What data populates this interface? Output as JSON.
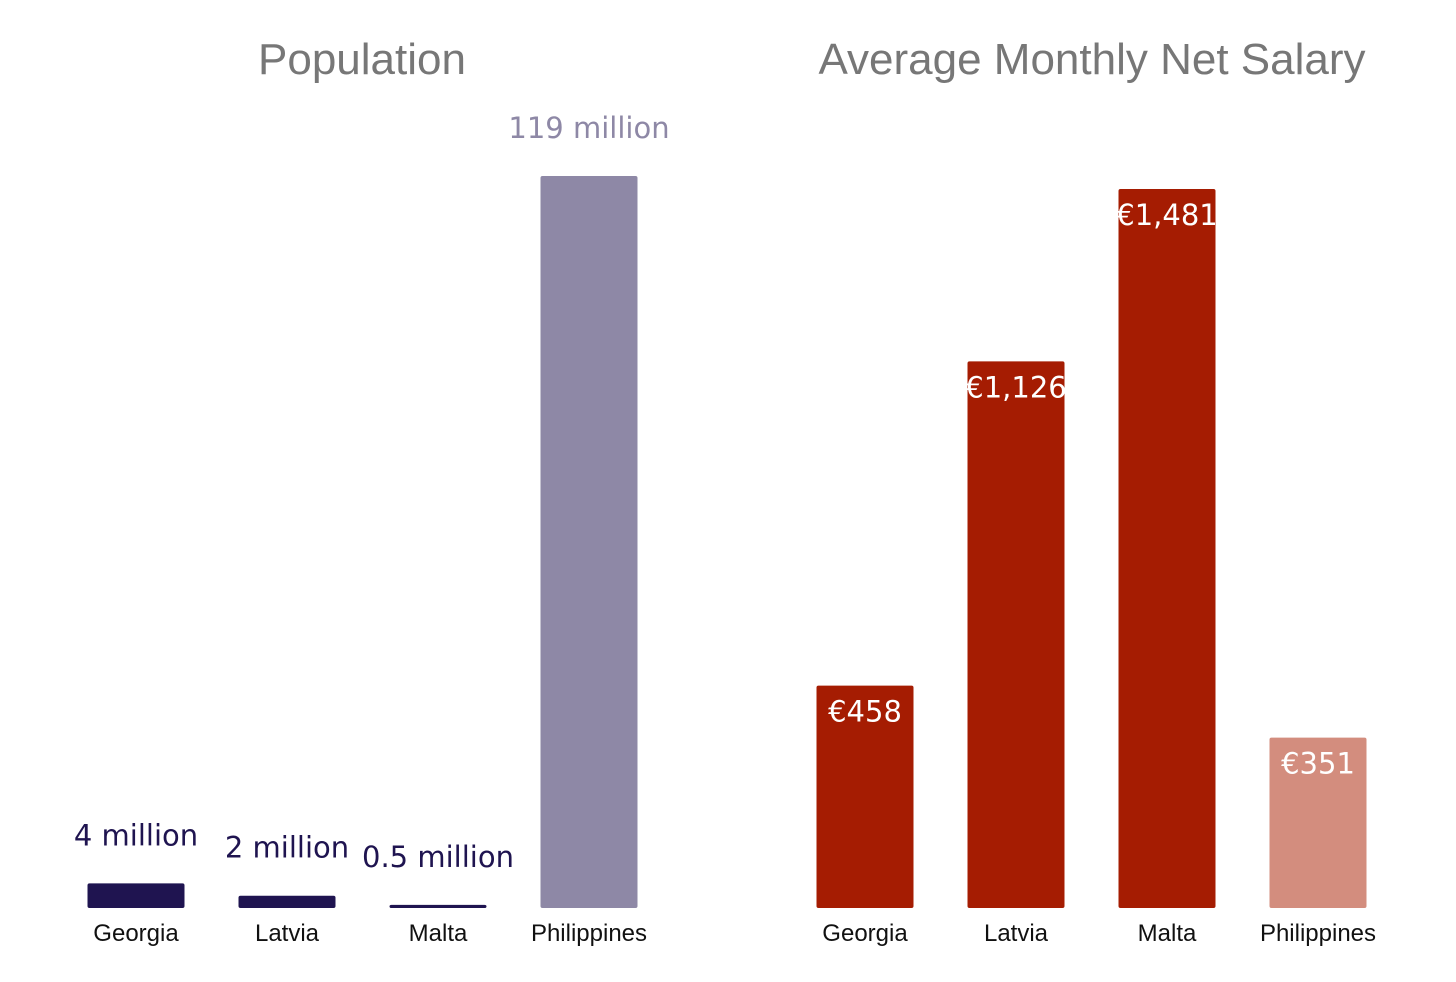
{
  "chart_data": [
    {
      "type": "bar",
      "title": "Population",
      "categories": [
        "Georgia",
        "Latvia",
        "Malta",
        "Philippines"
      ],
      "values": [
        4,
        2,
        0.5,
        119
      ],
      "value_labels": [
        "4 million",
        "2 million",
        "0.5 million",
        "119 million"
      ],
      "value_label_position": "above",
      "ylim": [
        0,
        119
      ],
      "grid": false,
      "colors": [
        "#1f1450",
        "#1f1450",
        "#1f1450",
        "#8e88a6"
      ],
      "label_colors": [
        "#1f1450",
        "#1f1450",
        "#1f1450",
        "#8e88a6"
      ]
    },
    {
      "type": "bar",
      "title": "Average Monthly Net Salary",
      "categories": [
        "Georgia",
        "Latvia",
        "Malta",
        "Philippines"
      ],
      "values": [
        458,
        1126,
        1481,
        351
      ],
      "value_labels": [
        "€458",
        "€1,126",
        "€1,481",
        "€351"
      ],
      "value_label_position": "inside-top",
      "ylim": [
        0,
        1481
      ],
      "grid": false,
      "colors": [
        "#a51c02",
        "#a51c02",
        "#a51c02",
        "#d38d7e"
      ],
      "label_colors": [
        "#ffffff",
        "#ffffff",
        "#ffffff",
        "#ffffff"
      ]
    }
  ]
}
